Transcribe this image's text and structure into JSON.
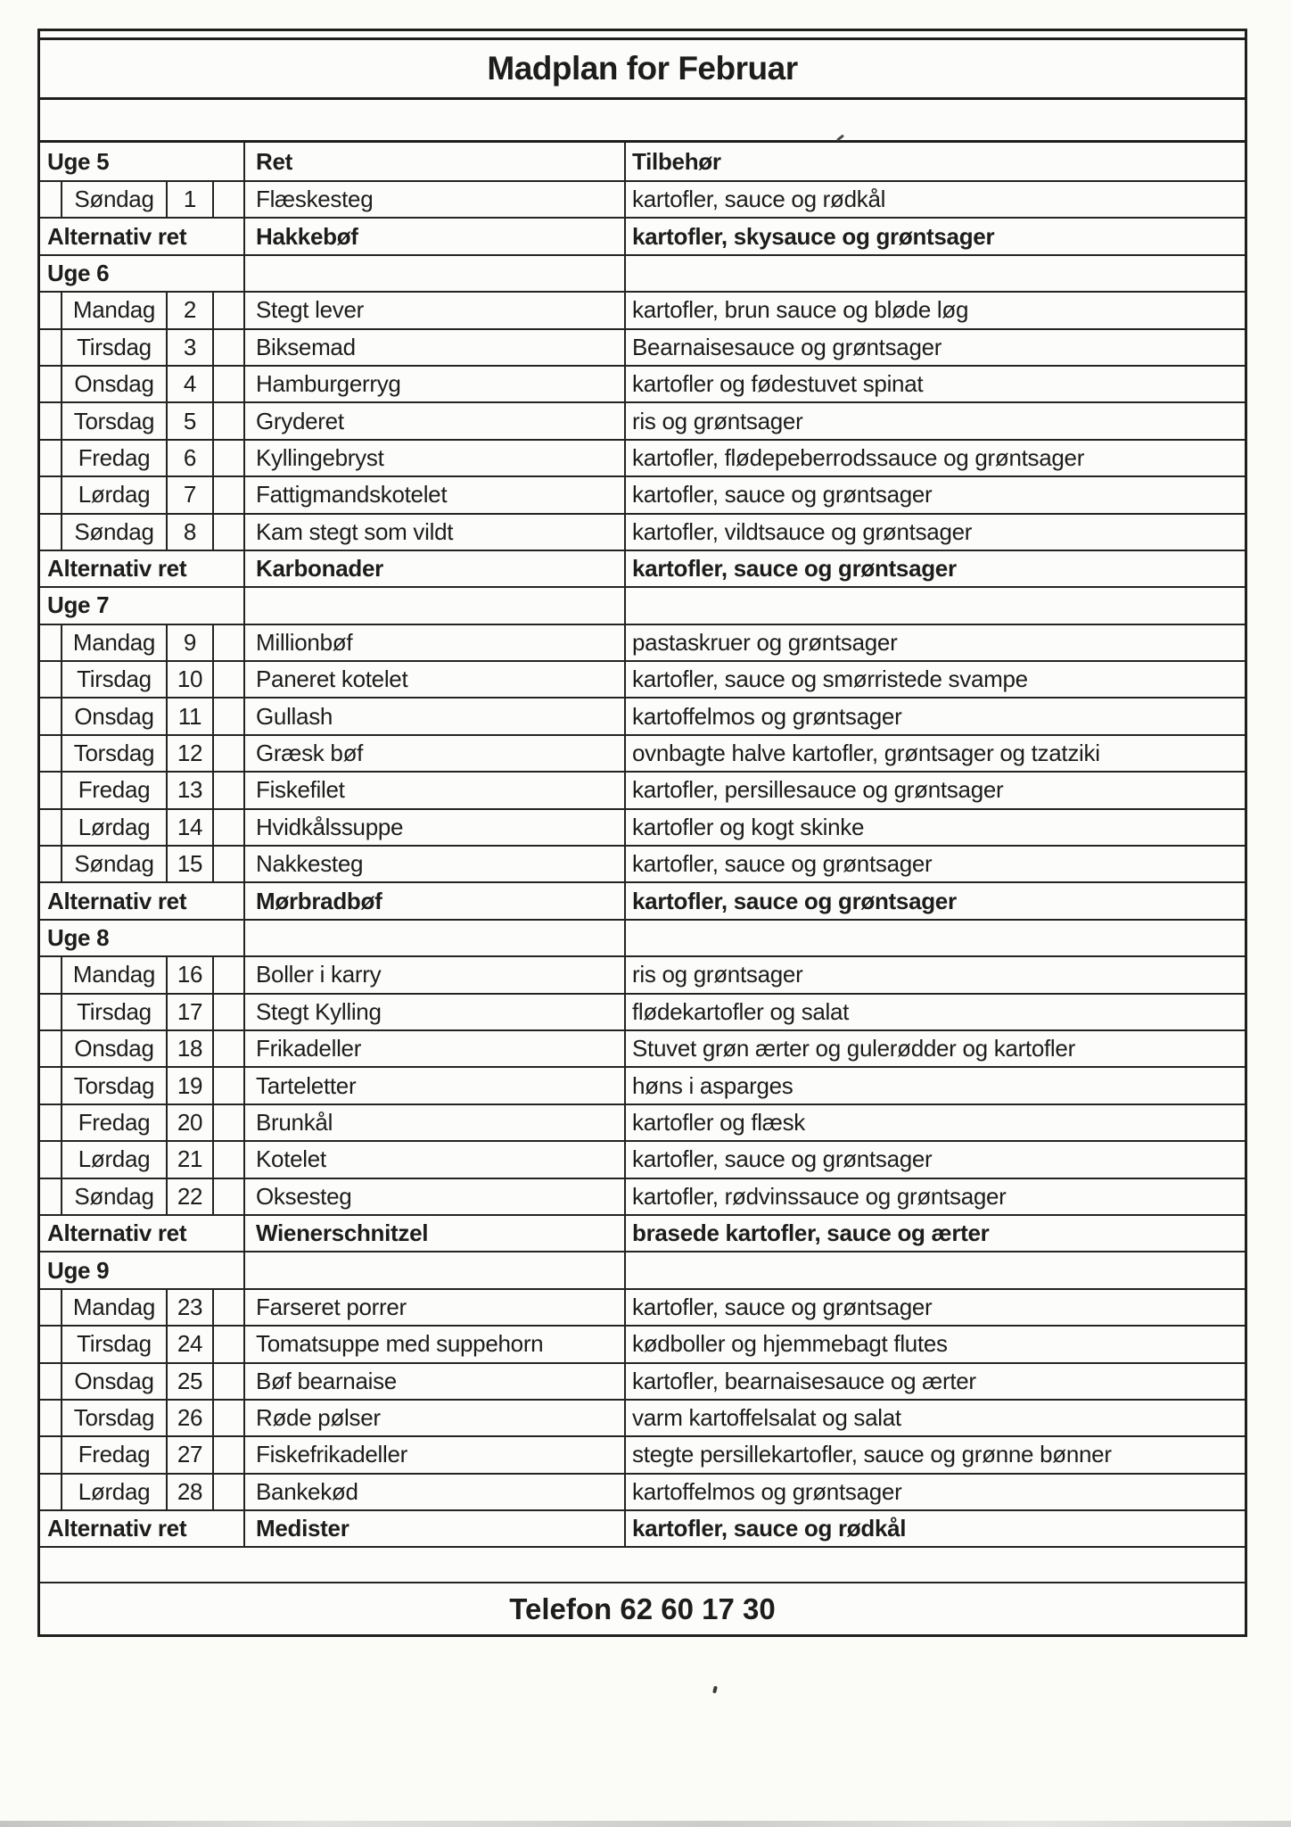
{
  "title": "Madplan for Februar",
  "header": {
    "week": "Uge 5",
    "dish": "Ret",
    "side": "Tilbehør"
  },
  "table": {
    "rows": [
      {
        "type": "day",
        "day": "Søndag",
        "num": "1",
        "dish": "Flæskesteg",
        "side": "kartofler, sauce og rødkål"
      },
      {
        "type": "alt",
        "label": "Alternativ ret",
        "dish": "Hakkebøf",
        "side": "kartofler, skysauce og grøntsager"
      },
      {
        "type": "week",
        "label": "Uge 6"
      },
      {
        "type": "day",
        "day": "Mandag",
        "num": "2",
        "dish": "Stegt lever",
        "side": "kartofler, brun sauce og bløde løg"
      },
      {
        "type": "day",
        "day": "Tirsdag",
        "num": "3",
        "dish": "Biksemad",
        "side": "Bearnaisesauce og grøntsager"
      },
      {
        "type": "day",
        "day": "Onsdag",
        "num": "4",
        "dish": "Hamburgerryg",
        "side": "kartofler og fødestuvet spinat"
      },
      {
        "type": "day",
        "day": "Torsdag",
        "num": "5",
        "dish": "Gryderet",
        "side": "ris og grøntsager"
      },
      {
        "type": "day",
        "day": "Fredag",
        "num": "6",
        "dish": "Kyllingebryst",
        "side": "kartofler, flødepeberrodssauce og grøntsager"
      },
      {
        "type": "day",
        "day": "Lørdag",
        "num": "7",
        "dish": "Fattigmandskotelet",
        "side": "kartofler, sauce og grøntsager"
      },
      {
        "type": "day",
        "day": "Søndag",
        "num": "8",
        "dish": "Kam stegt som vildt",
        "side": "kartofler, vildtsauce og grøntsager"
      },
      {
        "type": "alt",
        "label": "Alternativ ret",
        "dish": "Karbonader",
        "side": "kartofler, sauce og grøntsager"
      },
      {
        "type": "week",
        "label": "Uge 7"
      },
      {
        "type": "day",
        "day": "Mandag",
        "num": "9",
        "dish": "Millionbøf",
        "side": "pastaskruer og grøntsager"
      },
      {
        "type": "day",
        "day": "Tirsdag",
        "num": "10",
        "dish": "Paneret kotelet",
        "side": "kartofler, sauce og smørristede svampe"
      },
      {
        "type": "day",
        "day": "Onsdag",
        "num": "11",
        "dish": "Gullash",
        "side": "kartoffelmos og grøntsager"
      },
      {
        "type": "day",
        "day": "Torsdag",
        "num": "12",
        "dish": "Græsk bøf",
        "side": "ovnbagte halve kartofler, grøntsager og tzatziki"
      },
      {
        "type": "day",
        "day": "Fredag",
        "num": "13",
        "dish": "Fiskefilet",
        "side": "kartofler, persillesauce og grøntsager"
      },
      {
        "type": "day",
        "day": "Lørdag",
        "num": "14",
        "dish": "Hvidkålssuppe",
        "side": "kartofler og kogt skinke"
      },
      {
        "type": "day",
        "day": "Søndag",
        "num": "15",
        "dish": "Nakkesteg",
        "side": "kartofler, sauce og grøntsager"
      },
      {
        "type": "alt",
        "label": "Alternativ ret",
        "dish": "Mørbradbøf",
        "side": "kartofler, sauce og grøntsager"
      },
      {
        "type": "week",
        "label": "Uge 8"
      },
      {
        "type": "day",
        "day": "Mandag",
        "num": "16",
        "dish": "Boller i karry",
        "side": "ris og grøntsager"
      },
      {
        "type": "day",
        "day": "Tirsdag",
        "num": "17",
        "dish": "Stegt Kylling",
        "side": "flødekartofler og salat"
      },
      {
        "type": "day",
        "day": "Onsdag",
        "num": "18",
        "dish": "Frikadeller",
        "side": "Stuvet grøn ærter og gulerødder og kartofler"
      },
      {
        "type": "day",
        "day": "Torsdag",
        "num": "19",
        "dish": "Tarteletter",
        "side": "høns i asparges"
      },
      {
        "type": "day",
        "day": "Fredag",
        "num": "20",
        "dish": "Brunkål",
        "side": "kartofler og flæsk"
      },
      {
        "type": "day",
        "day": "Lørdag",
        "num": "21",
        "dish": "Kotelet",
        "side": "kartofler, sauce og grøntsager"
      },
      {
        "type": "day",
        "day": "Søndag",
        "num": "22",
        "dish": "Oksesteg",
        "side": "kartofler, rødvinssauce og grøntsager"
      },
      {
        "type": "alt",
        "label": "Alternativ ret",
        "dish": "Wienerschnitzel",
        "side": "brasede kartofler, sauce og ærter"
      },
      {
        "type": "week",
        "label": "Uge 9"
      },
      {
        "type": "day",
        "day": "Mandag",
        "num": "23",
        "dish": "Farseret porrer",
        "side": "kartofler, sauce og grøntsager"
      },
      {
        "type": "day",
        "day": "Tirsdag",
        "num": "24",
        "dish": "Tomatsuppe med suppehorn",
        "side": "kødboller og hjemmebagt flutes"
      },
      {
        "type": "day",
        "day": "Onsdag",
        "num": "25",
        "dish": "Bøf bearnaise",
        "side": "kartofler, bearnaisesauce og ærter"
      },
      {
        "type": "day",
        "day": "Torsdag",
        "num": "26",
        "dish": "Røde pølser",
        "side": "varm kartoffelsalat og salat"
      },
      {
        "type": "day",
        "day": "Fredag",
        "num": "27",
        "dish": "Fiskefrikadeller",
        "side": "stegte persillekartofler, sauce og grønne bønner"
      },
      {
        "type": "day",
        "day": "Lørdag",
        "num": "28",
        "dish": "Bankekød",
        "side": "kartoffelmos og grøntsager"
      },
      {
        "type": "alt",
        "label": "Alternativ ret",
        "dish": "Medister",
        "side": "kartofler, sauce og rødkål"
      }
    ]
  },
  "footer": {
    "phone": "Telefon 62 60 17 30"
  },
  "colors": {
    "ink": "#1d1d1d",
    "border": "#242424",
    "paper": "#fcfcfa"
  }
}
